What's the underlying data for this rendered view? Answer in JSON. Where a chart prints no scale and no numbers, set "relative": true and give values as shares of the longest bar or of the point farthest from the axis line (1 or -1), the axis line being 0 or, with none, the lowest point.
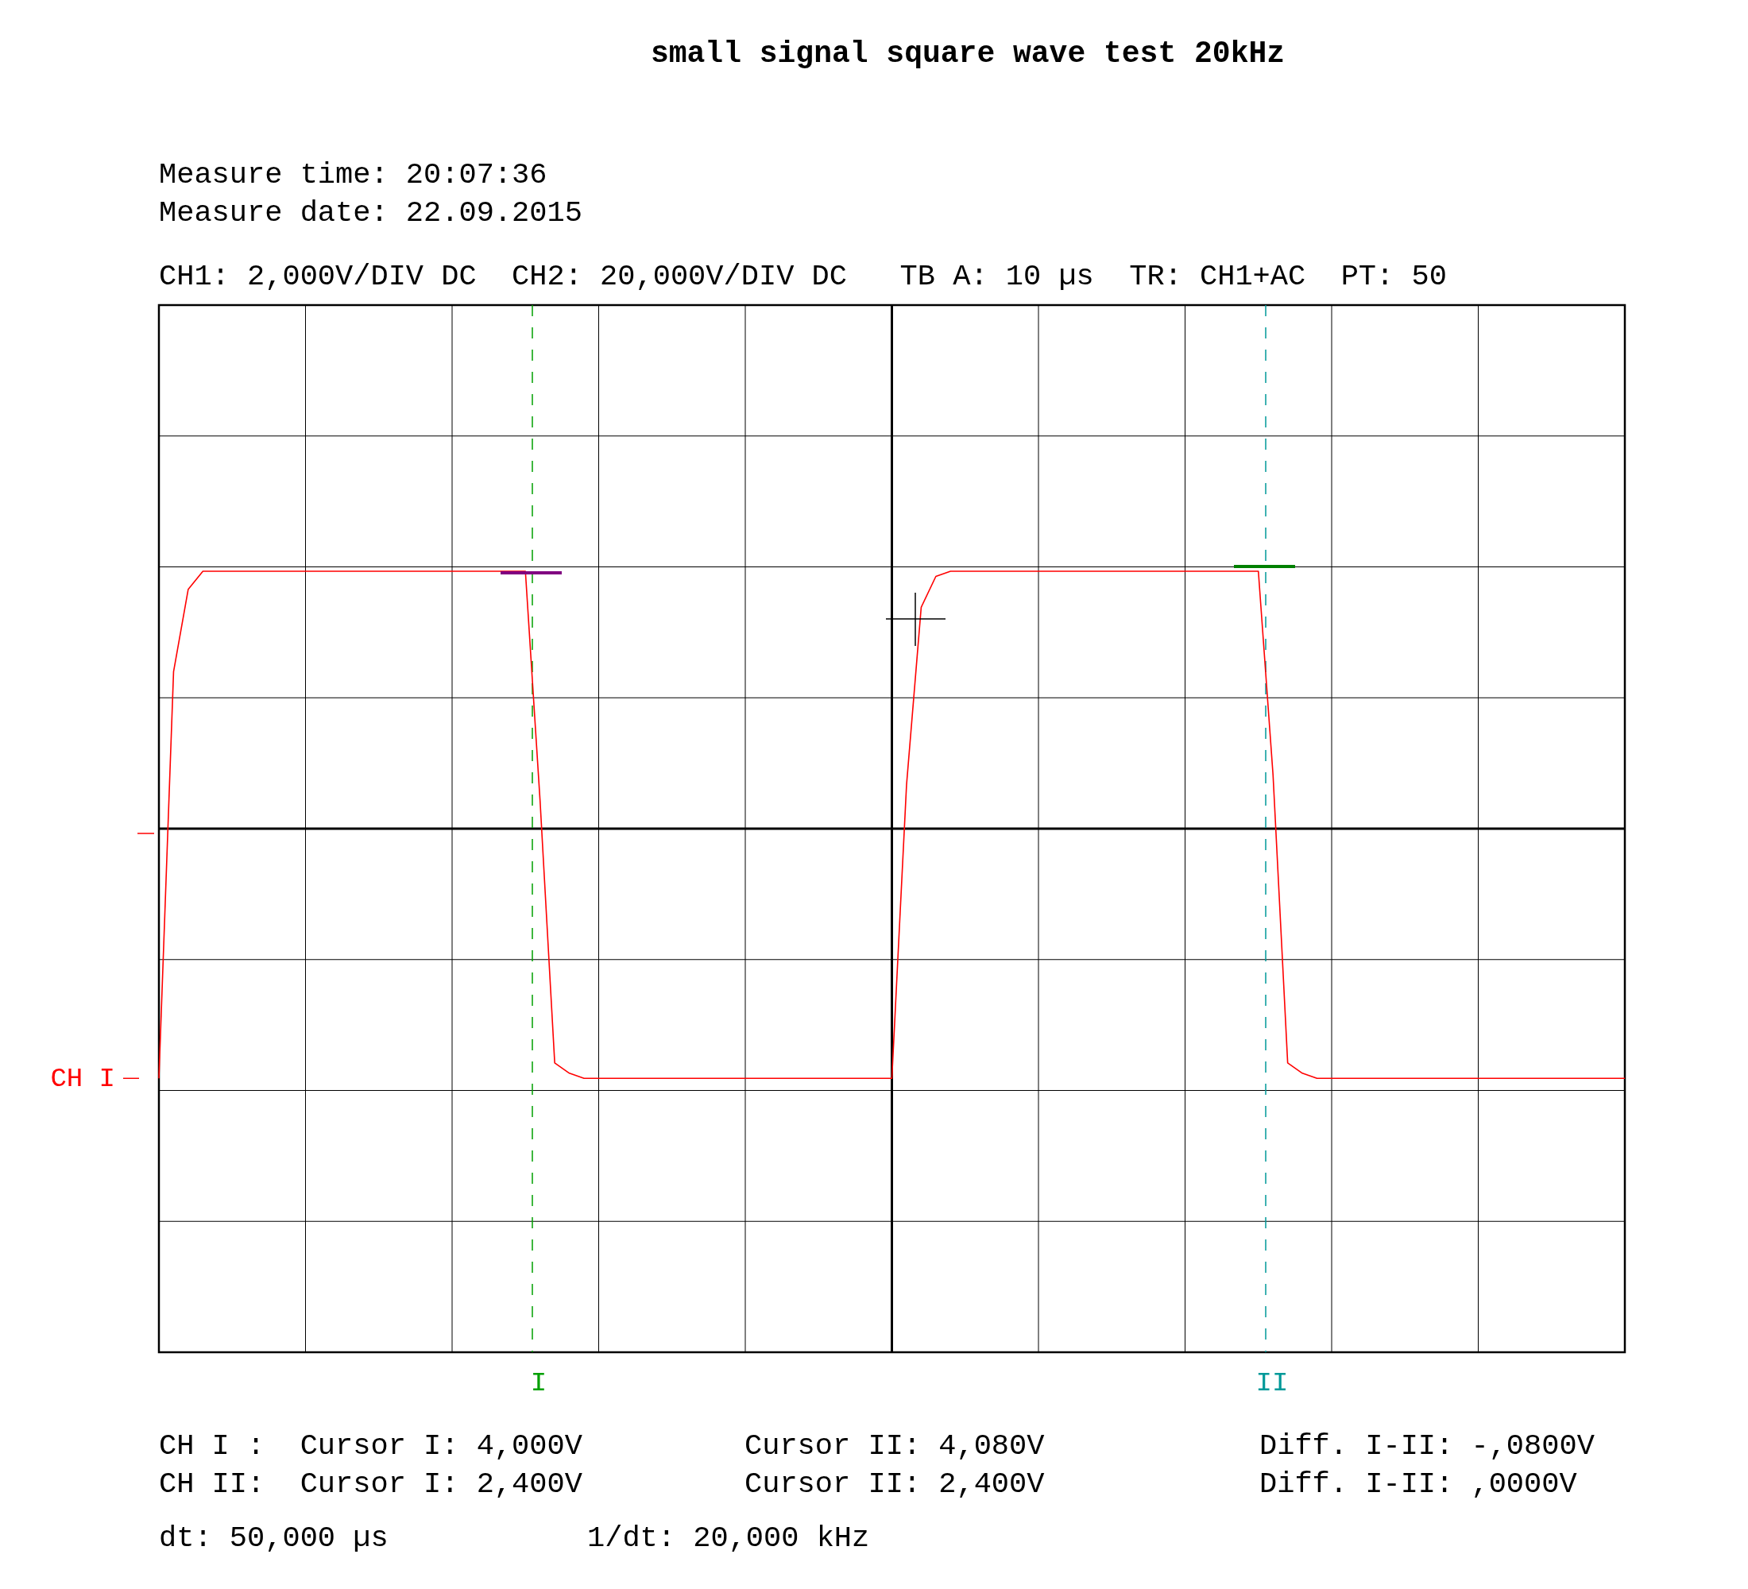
{
  "chart_data": {
    "type": "line",
    "title": "small signal square wave test 20kHz",
    "relative": true,
    "grid": true,
    "marker": "none",
    "line_style": "solid",
    "legend": "left",
    "categories": [
      null,
      null,
      null,
      null,
      null,
      null,
      null,
      null,
      null,
      null,
      null,
      null,
      null,
      null,
      null,
      null,
      null,
      null,
      null,
      null,
      null,
      null,
      null,
      null,
      null,
      null,
      null,
      null,
      null,
      null,
      null,
      null,
      null,
      null,
      null,
      null,
      null,
      null,
      null,
      null,
      null,
      null,
      null,
      null,
      null,
      null,
      null,
      null,
      null,
      null,
      null,
      null,
      null,
      null,
      null,
      null,
      null,
      null,
      null,
      null,
      null,
      null,
      null,
      null,
      null,
      null,
      null,
      null,
      null,
      null,
      null,
      null,
      null,
      null,
      null,
      null,
      null,
      null,
      null,
      null,
      null,
      null,
      null,
      null,
      null,
      null,
      null,
      null,
      null,
      null,
      null,
      null,
      null,
      null,
      null,
      null,
      null,
      null,
      null,
      null,
      null
    ],
    "series": [
      {
        "name": "CH I",
        "color": "#ff0000",
        "values": [
          -0.97,
          0.61,
          0.93,
          1,
          1,
          1,
          1,
          1,
          1,
          1,
          1,
          1,
          1,
          1,
          1,
          1,
          1,
          1,
          1,
          1,
          1,
          1,
          1,
          1,
          1,
          1,
          0.11,
          -0.91,
          -0.95,
          -0.97,
          -0.97,
          -0.97,
          -0.97,
          -0.97,
          -0.97,
          -0.97,
          -0.97,
          -0.97,
          -0.97,
          -0.97,
          -0.97,
          -0.97,
          -0.97,
          -0.97,
          -0.97,
          -0.97,
          -0.97,
          -0.97,
          -0.97,
          -0.97,
          -0.97,
          0.17,
          0.86,
          0.98,
          1,
          1,
          1,
          1,
          1,
          1,
          1,
          1,
          1,
          1,
          1,
          1,
          1,
          1,
          1,
          1,
          1,
          1,
          1,
          1,
          1,
          1,
          0.21,
          -0.91,
          -0.95,
          -0.97,
          -0.97,
          -0.97,
          -0.97,
          -0.97,
          -0.97,
          -0.97,
          -0.97,
          -0.97,
          -0.97,
          -0.97,
          -0.97,
          -0.97,
          -0.97,
          -0.97,
          -0.97,
          -0.97,
          -0.97,
          -0.97,
          -0.97,
          -0.97,
          -0.97
        ]
      }
    ],
    "annotations": [
      "I",
      "II",
      "Measure time: 20:07:36",
      "Measure date: 22.09.2015",
      "CH1: 2,000V/DIV DC  CH2: 20,000V/DIV DC   TB A: 10 µs  TR: CH1+AC  PT: 50",
      "CH I :  Cursor I: 4,000V",
      "Cursor II: 4,080V",
      "Diff. I-II: -,0800V",
      "CH II:  Cursor I: 2,400V",
      "Cursor II: 2,400V",
      "Diff. I-II: ,0000V",
      "dt: 50,000 µs",
      "1/dt: 20,000 kHz"
    ]
  }
}
